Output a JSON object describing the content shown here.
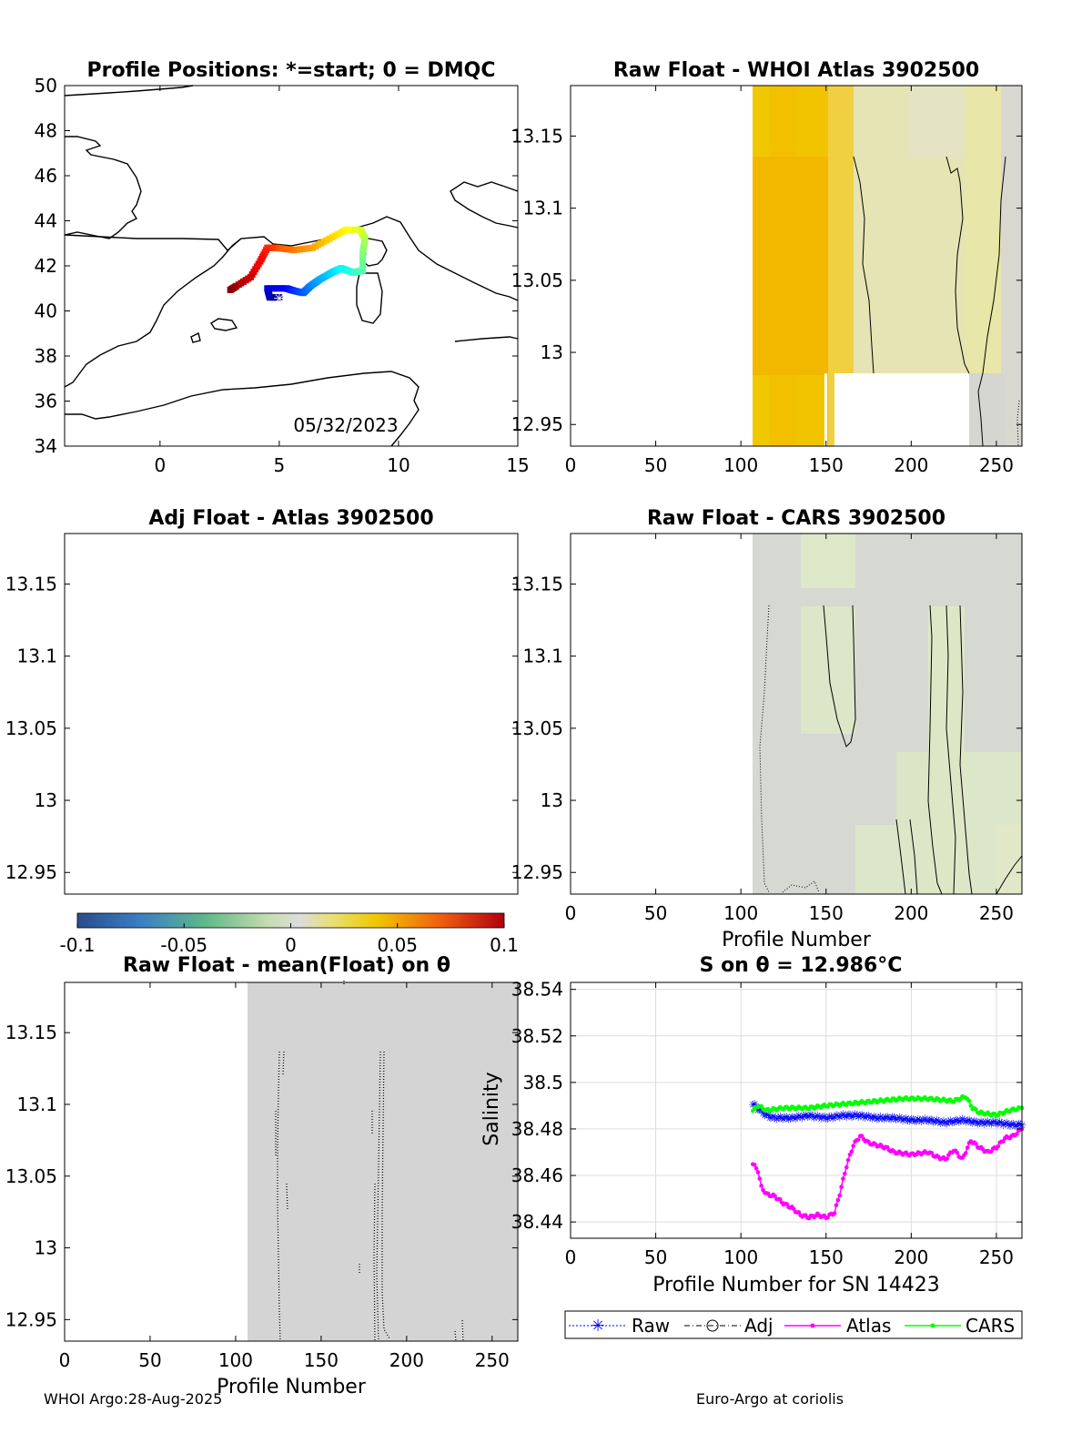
{
  "footer": {
    "left": "WHOI Argo:28-Aug-2025",
    "right": "Euro-Argo at coriolis"
  },
  "colorbar": {
    "ticks": [
      "-0.1",
      "-0.05",
      "0",
      "0.05",
      "0.1"
    ],
    "range": [
      -0.1,
      0.1
    ]
  },
  "chart_data": [
    {
      "id": "map",
      "type": "scatter",
      "title": "Profile Positions: *=start; 0 = DMQC",
      "annotation": "05/32/2023",
      "xlim": [
        -4,
        15
      ],
      "ylim": [
        34,
        50
      ],
      "xticks": [
        "0",
        "5",
        "10",
        "15"
      ],
      "yticks": [
        "34",
        "36",
        "38",
        "40",
        "42",
        "44",
        "46",
        "48",
        "50"
      ],
      "track": [
        [
          5.0,
          40.6
        ],
        [
          4.6,
          40.6
        ],
        [
          4.5,
          41.0
        ],
        [
          5.3,
          41.0
        ],
        [
          5.6,
          40.9
        ],
        [
          6.0,
          40.8
        ],
        [
          6.3,
          41.1
        ],
        [
          6.7,
          41.4
        ],
        [
          7.2,
          41.7
        ],
        [
          7.6,
          41.9
        ],
        [
          8.1,
          41.7
        ],
        [
          8.5,
          41.8
        ],
        [
          8.5,
          42.6
        ],
        [
          8.6,
          43.2
        ],
        [
          8.4,
          43.6
        ],
        [
          7.8,
          43.6
        ],
        [
          7.1,
          43.2
        ],
        [
          6.4,
          42.8
        ],
        [
          5.6,
          42.7
        ],
        [
          4.9,
          42.8
        ],
        [
          4.5,
          42.8
        ],
        [
          4.2,
          42.2
        ],
        [
          3.8,
          41.5
        ],
        [
          3.2,
          41.1
        ],
        [
          2.9,
          40.9
        ]
      ]
    },
    {
      "id": "raw-atlas",
      "type": "heatmap",
      "title": "Raw Float - WHOI Atlas  3902500",
      "xlim": [
        0,
        265
      ],
      "ylim": [
        12.935,
        13.185
      ],
      "xticks": [
        "0",
        "50",
        "100",
        "150",
        "200",
        "250"
      ],
      "yticks": [
        "12.95",
        "13",
        "13.05",
        "13.1",
        "13.15"
      ],
      "data_start_profile": 107
    },
    {
      "id": "adj-atlas",
      "type": "heatmap",
      "title": "Adj Float - Atlas  3902500",
      "xlim": [
        0,
        265
      ],
      "ylim": [
        12.935,
        13.185
      ],
      "xticks": [],
      "yticks": [
        "12.95",
        "13",
        "13.05",
        "13.1",
        "13.15"
      ]
    },
    {
      "id": "raw-cars",
      "type": "heatmap",
      "title": "Raw Float - CARS  3902500",
      "xlabel": "Profile Number",
      "xlim": [
        0,
        265
      ],
      "ylim": [
        12.935,
        13.185
      ],
      "xticks": [
        "0",
        "50",
        "100",
        "150",
        "200",
        "250"
      ],
      "yticks": [
        "12.95",
        "13",
        "13.05",
        "13.1",
        "13.15"
      ],
      "data_start_profile": 107
    },
    {
      "id": "raw-mean",
      "type": "heatmap",
      "title": "Raw Float - mean(Float) on θ",
      "xlabel": "Profile Number",
      "xlim": [
        0,
        265
      ],
      "ylim": [
        12.935,
        13.185
      ],
      "xticks": [
        "0",
        "50",
        "100",
        "150",
        "200",
        "250"
      ],
      "yticks": [
        "12.95",
        "13",
        "13.05",
        "13.1",
        "13.15"
      ],
      "data_start_profile": 107
    },
    {
      "id": "salinity",
      "type": "line",
      "title": "S on θ = 12.986°C",
      "xlabel": "Profile Number for SN 14423",
      "ylabel": "Salinity",
      "xlim": [
        0,
        265
      ],
      "ylim": [
        38.433,
        38.543
      ],
      "xticks": [
        "0",
        "50",
        "100",
        "150",
        "200",
        "250"
      ],
      "yticks": [
        "38.44",
        "38.46",
        "38.48",
        "38.5",
        "38.52",
        "38.54"
      ],
      "legend": [
        "Raw",
        "Adj",
        "Atlas",
        "CARS"
      ],
      "series": [
        {
          "name": "Raw",
          "color": "#0000ff",
          "points": [
            [
              107,
              38.491
            ],
            [
              110,
              38.489
            ],
            [
              115,
              38.486
            ],
            [
              120,
              38.485
            ],
            [
              130,
              38.485
            ],
            [
              140,
              38.486
            ],
            [
              150,
              38.485
            ],
            [
              160,
              38.486
            ],
            [
              170,
              38.486
            ],
            [
              180,
              38.485
            ],
            [
              190,
              38.485
            ],
            [
              200,
              38.484
            ],
            [
              210,
              38.484
            ],
            [
              220,
              38.483
            ],
            [
              230,
              38.484
            ],
            [
              240,
              38.483
            ],
            [
              250,
              38.483
            ],
            [
              260,
              38.482
            ],
            [
              265,
              38.482
            ]
          ]
        },
        {
          "name": "CARS",
          "color": "#00ff00",
          "points": [
            [
              107,
              38.488
            ],
            [
              110,
              38.49
            ],
            [
              115,
              38.488
            ],
            [
              125,
              38.489
            ],
            [
              140,
              38.489
            ],
            [
              150,
              38.49
            ],
            [
              165,
              38.491
            ],
            [
              180,
              38.492
            ],
            [
              195,
              38.493
            ],
            [
              210,
              38.493
            ],
            [
              225,
              38.492
            ],
            [
              232,
              38.494
            ],
            [
              236,
              38.489
            ],
            [
              240,
              38.487
            ],
            [
              250,
              38.486
            ],
            [
              258,
              38.488
            ],
            [
              265,
              38.489
            ]
          ]
        },
        {
          "name": "Atlas",
          "color": "#ff00ff",
          "points": [
            [
              107,
              38.465
            ],
            [
              110,
              38.462
            ],
            [
              112,
              38.455
            ],
            [
              115,
              38.452
            ],
            [
              120,
              38.451
            ],
            [
              125,
              38.448
            ],
            [
              130,
              38.446
            ],
            [
              135,
              38.443
            ],
            [
              140,
              38.442
            ],
            [
              145,
              38.443
            ],
            [
              150,
              38.442
            ],
            [
              155,
              38.444
            ],
            [
              158,
              38.452
            ],
            [
              162,
              38.464
            ],
            [
              166,
              38.473
            ],
            [
              170,
              38.477
            ],
            [
              175,
              38.474
            ],
            [
              180,
              38.473
            ],
            [
              185,
              38.472
            ],
            [
              190,
              38.47
            ],
            [
              200,
              38.469
            ],
            [
              210,
              38.47
            ],
            [
              215,
              38.468
            ],
            [
              220,
              38.467
            ],
            [
              225,
              38.471
            ],
            [
              230,
              38.467
            ],
            [
              235,
              38.475
            ],
            [
              240,
              38.472
            ],
            [
              245,
              38.47
            ],
            [
              250,
              38.472
            ],
            [
              255,
              38.476
            ],
            [
              260,
              38.477
            ],
            [
              265,
              38.48
            ]
          ]
        }
      ]
    }
  ]
}
